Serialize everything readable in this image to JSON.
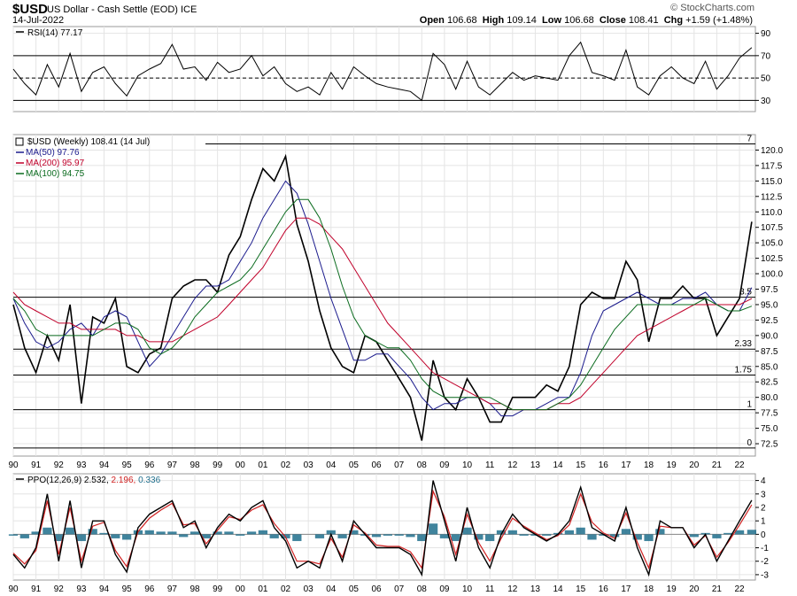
{
  "header": {
    "symbol": "$USD",
    "description": "US Dollar - Cash Settle (EOD) ICE",
    "date": "14-Jul-2022",
    "credit": "© StockCharts.com",
    "open_label": "Open",
    "open": "106.68",
    "high_label": "High",
    "high": "109.14",
    "low_label": "Low",
    "low": "106.68",
    "close_label": "Close",
    "close": "108.41",
    "chg_label": "Chg",
    "chg": "+1.59 (+1.48%)"
  },
  "chart_data": [
    {
      "type": "line",
      "panel": "RSI",
      "legend": "RSI(14) 77.17",
      "ylim": [
        20,
        96
      ],
      "yticks": [
        30,
        50,
        70,
        90
      ],
      "reference_lines": [
        30,
        50,
        70
      ],
      "x": [
        1990.0,
        1990.5,
        1991.0,
        1991.5,
        1992.0,
        1992.5,
        1993.0,
        1993.5,
        1994.0,
        1994.5,
        1995.0,
        1995.5,
        1996.0,
        1996.5,
        1997.0,
        1997.5,
        1998.0,
        1998.5,
        1999.0,
        1999.5,
        2000.0,
        2000.5,
        2001.0,
        2001.5,
        2002.0,
        2002.5,
        2003.0,
        2003.5,
        2004.0,
        2004.5,
        2005.0,
        2005.5,
        2006.0,
        2006.5,
        2007.0,
        2007.5,
        2008.0,
        2008.5,
        2009.0,
        2009.5,
        2010.0,
        2010.5,
        2011.0,
        2011.5,
        2012.0,
        2012.5,
        2013.0,
        2013.5,
        2014.0,
        2014.5,
        2015.0,
        2015.5,
        2016.0,
        2016.5,
        2017.0,
        2017.5,
        2018.0,
        2018.5,
        2019.0,
        2019.5,
        2020.0,
        2020.5,
        2021.0,
        2021.5,
        2022.0,
        2022.54
      ],
      "values": [
        58,
        45,
        35,
        62,
        42,
        72,
        38,
        55,
        60,
        45,
        34,
        52,
        58,
        63,
        80,
        58,
        60,
        48,
        64,
        55,
        58,
        70,
        52,
        60,
        45,
        38,
        42,
        35,
        55,
        40,
        60,
        52,
        45,
        42,
        40,
        38,
        30,
        72,
        62,
        40,
        65,
        42,
        35,
        45,
        55,
        48,
        52,
        50,
        48,
        70,
        82,
        55,
        52,
        48,
        75,
        42,
        35,
        52,
        60,
        50,
        45,
        65,
        40,
        52,
        68,
        77.17
      ]
    },
    {
      "type": "line",
      "panel": "price",
      "legend": "$USD (Weekly) 108.41 (14 Jul)",
      "xlim": [
        1990.0,
        2022.7
      ],
      "xticks": [
        "90",
        "91",
        "92",
        "93",
        "94",
        "95",
        "96",
        "97",
        "98",
        "99",
        "00",
        "01",
        "02",
        "03",
        "04",
        "05",
        "06",
        "07",
        "08",
        "09",
        "10",
        "11",
        "12",
        "13",
        "14",
        "15",
        "16",
        "17",
        "18",
        "19",
        "20",
        "21",
        "22"
      ],
      "ylim": [
        70.5,
        122.5
      ],
      "yticks": [
        72.5,
        75.0,
        77.5,
        80.0,
        82.5,
        85.0,
        87.5,
        90.0,
        92.5,
        95.0,
        97.5,
        100.0,
        102.5,
        105.0,
        107.5,
        110.0,
        112.5,
        115.0,
        117.5,
        120.0
      ],
      "level_lines": [
        {
          "value": 121.0,
          "label": "7"
        },
        {
          "value": 96.2,
          "label": "3.5"
        },
        {
          "value": 87.8,
          "label": "2.33"
        },
        {
          "value": 83.6,
          "label": "1.75"
        },
        {
          "value": 78.0,
          "label": "1"
        },
        {
          "value": 71.8,
          "label": "0"
        }
      ],
      "x": [
        1990.0,
        1990.5,
        1991.0,
        1991.5,
        1992.0,
        1992.5,
        1993.0,
        1993.5,
        1994.0,
        1994.5,
        1995.0,
        1995.5,
        1996.0,
        1996.5,
        1997.0,
        1997.5,
        1998.0,
        1998.5,
        1999.0,
        1999.5,
        2000.0,
        2000.5,
        2001.0,
        2001.5,
        2002.0,
        2002.5,
        2003.0,
        2003.5,
        2004.0,
        2004.5,
        2005.0,
        2005.5,
        2006.0,
        2006.5,
        2007.0,
        2007.5,
        2008.0,
        2008.5,
        2009.0,
        2009.5,
        2010.0,
        2010.5,
        2011.0,
        2011.5,
        2012.0,
        2012.5,
        2013.0,
        2013.5,
        2014.0,
        2014.5,
        2015.0,
        2015.5,
        2016.0,
        2016.5,
        2017.0,
        2017.5,
        2018.0,
        2018.5,
        2019.0,
        2019.5,
        2020.0,
        2020.5,
        2021.0,
        2021.5,
        2022.0,
        2022.54
      ],
      "series": [
        {
          "name": "$USD",
          "color": "#000000",
          "values": [
            95,
            88,
            84,
            90,
            86,
            95,
            79,
            93,
            92,
            96,
            85,
            84,
            87,
            88,
            96,
            98,
            99,
            99,
            97,
            103,
            106,
            112,
            117,
            115,
            119,
            108,
            102,
            94,
            88,
            85,
            84,
            90,
            89,
            86,
            83,
            80,
            73,
            86,
            80,
            78,
            83,
            80,
            76,
            76,
            80,
            80,
            80,
            82,
            81,
            85,
            95,
            97,
            96,
            96,
            102,
            99,
            89,
            96,
            96,
            98,
            96,
            96,
            90,
            93,
            96,
            108.41
          ]
        },
        {
          "name": "MA(50)",
          "legend": "MA(50) 97.76",
          "color": "#1a1a8c",
          "values": [
            96,
            92,
            89,
            88,
            89,
            91,
            92,
            90,
            93,
            94,
            93,
            89,
            85,
            87,
            90,
            93,
            96,
            98,
            98,
            99,
            102,
            105,
            109,
            112,
            115,
            113,
            108,
            102,
            96,
            91,
            86,
            86,
            87,
            87,
            85,
            83,
            80,
            78,
            79,
            79,
            80,
            80,
            79,
            77,
            77,
            78,
            78,
            79,
            80,
            80,
            84,
            90,
            94,
            95,
            96,
            97,
            96,
            95,
            95,
            96,
            96,
            97,
            95,
            94,
            94,
            97.76
          ]
        },
        {
          "name": "MA(200)",
          "legend": "MA(200) 95.97",
          "color": "#c0002a",
          "values": [
            97,
            95,
            94,
            93,
            92,
            92,
            91,
            91,
            91,
            91,
            90,
            90,
            89,
            89,
            89,
            90,
            91,
            92,
            93,
            95,
            97,
            99,
            101,
            104,
            107,
            109,
            109,
            108,
            106,
            104,
            101,
            98,
            95,
            92,
            90,
            88,
            86,
            84,
            83,
            82,
            81,
            80,
            79,
            79,
            78,
            78,
            78,
            78,
            79,
            79,
            80,
            82,
            84,
            86,
            88,
            90,
            91,
            92,
            93,
            94,
            95,
            95,
            95,
            95,
            95,
            95.97
          ]
        },
        {
          "name": "MA(100)",
          "legend": "MA(100) 94.75",
          "color": "#0a6b1e",
          "values": [
            96,
            94,
            91,
            90,
            90,
            90,
            90,
            90,
            91,
            92,
            92,
            91,
            88,
            87,
            88,
            90,
            93,
            95,
            97,
            98,
            99,
            101,
            104,
            107,
            110,
            112,
            112,
            109,
            104,
            98,
            93,
            90,
            89,
            88,
            88,
            86,
            83,
            81,
            80,
            80,
            80,
            80,
            80,
            79,
            78,
            78,
            78,
            78,
            79,
            80,
            82,
            85,
            88,
            91,
            93,
            95,
            95,
            95,
            95,
            95,
            95,
            96,
            95,
            94,
            94,
            94.75
          ]
        }
      ]
    },
    {
      "type": "line",
      "panel": "PPO",
      "legend": "PPO(12,26,9) 2.532, 2.196, 0.336",
      "legend_parts": [
        "PPO(12,26,9) 2.532,",
        "2.196,",
        "0.336"
      ],
      "ylim": [
        -3.4,
        4.5
      ],
      "yticks": [
        -3,
        -2,
        -1,
        0,
        1,
        2,
        3,
        4
      ],
      "x": [
        1990.0,
        1990.5,
        1991.0,
        1991.5,
        1992.0,
        1992.5,
        1993.0,
        1993.5,
        1994.0,
        1994.5,
        1995.0,
        1995.5,
        1996.0,
        1996.5,
        1997.0,
        1997.5,
        1998.0,
        1998.5,
        1999.0,
        1999.5,
        2000.0,
        2000.5,
        2001.0,
        2001.5,
        2002.0,
        2002.5,
        2003.0,
        2003.5,
        2004.0,
        2004.5,
        2005.0,
        2005.5,
        2006.0,
        2006.5,
        2007.0,
        2007.5,
        2008.0,
        2008.5,
        2009.0,
        2009.5,
        2010.0,
        2010.5,
        2011.0,
        2011.5,
        2012.0,
        2012.5,
        2013.0,
        2013.5,
        2014.0,
        2014.5,
        2015.0,
        2015.5,
        2016.0,
        2016.5,
        2017.0,
        2017.5,
        2018.0,
        2018.5,
        2019.0,
        2019.5,
        2020.0,
        2020.5,
        2021.0,
        2021.5,
        2022.0,
        2022.54
      ],
      "series": [
        {
          "name": "PPO",
          "color": "#000000",
          "values": [
            -1.5,
            -2.5,
            -1,
            3,
            -2,
            2.5,
            -2.5,
            1,
            1,
            -1.5,
            -2.8,
            0.5,
            1.5,
            2,
            2.5,
            0.5,
            1,
            -1,
            0.5,
            1.5,
            1,
            2,
            2.5,
            0.5,
            -0.5,
            -2.5,
            -2,
            -2.5,
            0,
            -2,
            1,
            0,
            -1,
            -1,
            -1,
            -1.5,
            -3,
            4,
            1,
            -2,
            2,
            -1,
            -2.5,
            0,
            1.5,
            0.5,
            0,
            -0.5,
            0,
            1,
            3.5,
            0.5,
            0,
            -0.5,
            2,
            -1,
            -3,
            1,
            0.5,
            0.5,
            -1,
            0,
            -2,
            -0.5,
            1,
            2.532
          ]
        },
        {
          "name": "Signal",
          "color": "#d02020",
          "values": [
            -1.4,
            -2.2,
            -1.2,
            2.5,
            -1.5,
            2,
            -2,
            0.6,
            0.9,
            -1.2,
            -2.4,
            0.2,
            1.2,
            1.8,
            2.3,
            0.7,
            0.8,
            -0.7,
            0.3,
            1.3,
            1.1,
            1.8,
            2.2,
            0.8,
            -0.2,
            -2,
            -2,
            -2.2,
            -0.3,
            -1.7,
            0.7,
            0.1,
            -0.8,
            -0.9,
            -0.9,
            -1.3,
            -2.5,
            3.2,
            1.3,
            -1.5,
            1.5,
            -0.6,
            -2,
            -0.3,
            1.2,
            0.6,
            0.1,
            -0.4,
            -0.1,
            0.7,
            3,
            0.9,
            0.1,
            -0.3,
            1.6,
            -0.6,
            -2.5,
            0.6,
            0.5,
            0.5,
            -0.8,
            -0.1,
            -1.7,
            -0.6,
            0.7,
            2.196
          ]
        },
        {
          "name": "Histogram",
          "color": "#1f6e8c",
          "values": [
            -0.1,
            -0.3,
            0.2,
            0.5,
            -0.5,
            0.5,
            -0.5,
            0.4,
            0.1,
            -0.3,
            -0.4,
            0.3,
            0.3,
            0.2,
            0.2,
            -0.2,
            0.2,
            -0.3,
            0.2,
            0.2,
            -0.1,
            0.2,
            0.3,
            -0.3,
            -0.3,
            -0.5,
            0,
            -0.3,
            0.3,
            -0.3,
            0.3,
            -0.1,
            -0.2,
            -0.1,
            -0.1,
            -0.2,
            -0.5,
            0.8,
            -0.3,
            -0.5,
            0.5,
            -0.4,
            -0.5,
            0.3,
            0.3,
            -0.1,
            -0.1,
            -0.1,
            0.1,
            0.3,
            0.5,
            -0.4,
            -0.1,
            -0.2,
            0.4,
            -0.4,
            -0.5,
            0.4,
            0,
            0,
            -0.2,
            0.1,
            -0.3,
            0.1,
            0.3,
            0.336
          ]
        }
      ]
    }
  ]
}
